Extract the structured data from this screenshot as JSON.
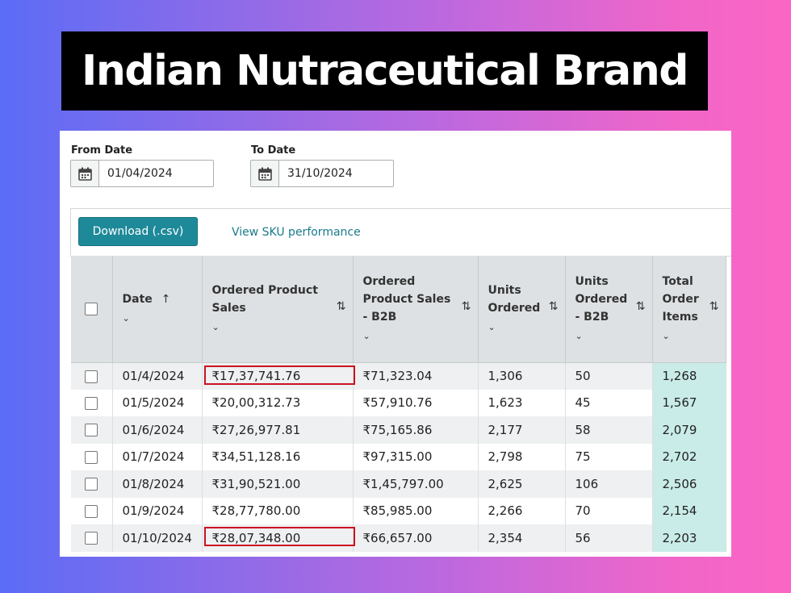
{
  "banner": {
    "title": "Indian Nutraceutical Brand"
  },
  "filters": {
    "from_label": "From Date",
    "from_value": "01/04/2024",
    "to_label": "To Date",
    "to_value": "31/10/2024"
  },
  "toolbar": {
    "download_label": "Download (.csv)",
    "sku_link": "View SKU performance"
  },
  "table": {
    "headers": {
      "date": "Date",
      "sales": "Ordered Product Sales",
      "sales_b2b": "Ordered Product Sales - B2B",
      "units": "Units Ordered",
      "units_b2b": "Units Ordered - B2B",
      "items": "Total Order Items"
    },
    "rows": [
      {
        "date": "01/4/2024",
        "sales": "₹17,37,741.76",
        "sales_b2b": "₹71,323.04",
        "units": "1,306",
        "units_b2b": "50",
        "items": "1,268"
      },
      {
        "date": "01/5/2024",
        "sales": "₹20,00,312.73",
        "sales_b2b": "₹57,910.76",
        "units": "1,623",
        "units_b2b": "45",
        "items": "1,567"
      },
      {
        "date": "01/6/2024",
        "sales": "₹27,26,977.81",
        "sales_b2b": "₹75,165.86",
        "units": "2,177",
        "units_b2b": "58",
        "items": "2,079"
      },
      {
        "date": "01/7/2024",
        "sales": "₹34,51,128.16",
        "sales_b2b": "₹97,315.00",
        "units": "2,798",
        "units_b2b": "75",
        "items": "2,702"
      },
      {
        "date": "01/8/2024",
        "sales": "₹31,90,521.00",
        "sales_b2b": "₹1,45,797.00",
        "units": "2,625",
        "units_b2b": "106",
        "items": "2,506"
      },
      {
        "date": "01/9/2024",
        "sales": "₹28,77,780.00",
        "sales_b2b": "₹85,985.00",
        "units": "2,266",
        "units_b2b": "70",
        "items": "2,154"
      },
      {
        "date": "01/10/2024",
        "sales": "₹28,07,348.00",
        "sales_b2b": "₹66,657.00",
        "units": "2,354",
        "units_b2b": "56",
        "items": "2,203"
      }
    ]
  },
  "colors": {
    "accent_button": "#1e8a99",
    "highlight_box": "#cc1122",
    "items_column": "#c9ece8"
  },
  "icons": [
    "calendar-icon",
    "sort-asc-icon",
    "sort-toggle-icon",
    "chevron-down-icon"
  ]
}
